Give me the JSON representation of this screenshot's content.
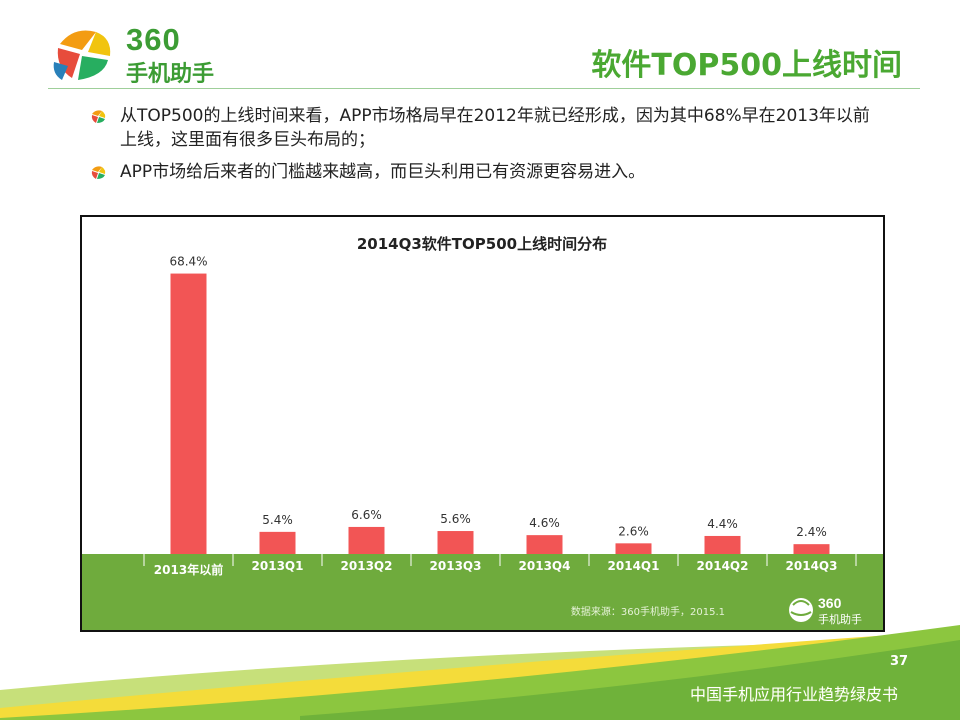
{
  "header": {
    "logo_number": "360",
    "logo_text": "手机助手",
    "title": "软件TOP500上线时间"
  },
  "bullets": [
    "从TOP500的上线时间来看，APP市场格局早在2012年就已经形成，因为其中68%早在2013年以前上线，这里面有很多巨头布局的；",
    "APP市场给后来者的门槛越来越高，而巨头利用已有资源更容易进入。"
  ],
  "chart_data": {
    "type": "bar",
    "title": "2014Q3软件TOP500上线时间分布",
    "categories": [
      "2013年以前",
      "2013Q1",
      "2013Q2",
      "2013Q3",
      "2013Q4",
      "2014Q1",
      "2014Q2",
      "2014Q3"
    ],
    "values": [
      68.4,
      5.4,
      6.6,
      5.6,
      4.6,
      2.6,
      4.4,
      2.4
    ],
    "data_labels": [
      "68.4%",
      "5.4%",
      "6.6%",
      "5.6%",
      "4.6%",
      "2.6%",
      "4.4%",
      "2.4%"
    ],
    "xlabel": "",
    "ylabel": "",
    "ylim": [
      0,
      70
    ],
    "source": "数据来源：360手机助手，2015.1",
    "badge_number": "360",
    "badge_text": "手机助手",
    "colors": {
      "bar": "#f25555",
      "band": "#6fab3d"
    }
  },
  "footer": {
    "page_number": "37",
    "text": "中国手机应用行业趋势绿皮书"
  }
}
